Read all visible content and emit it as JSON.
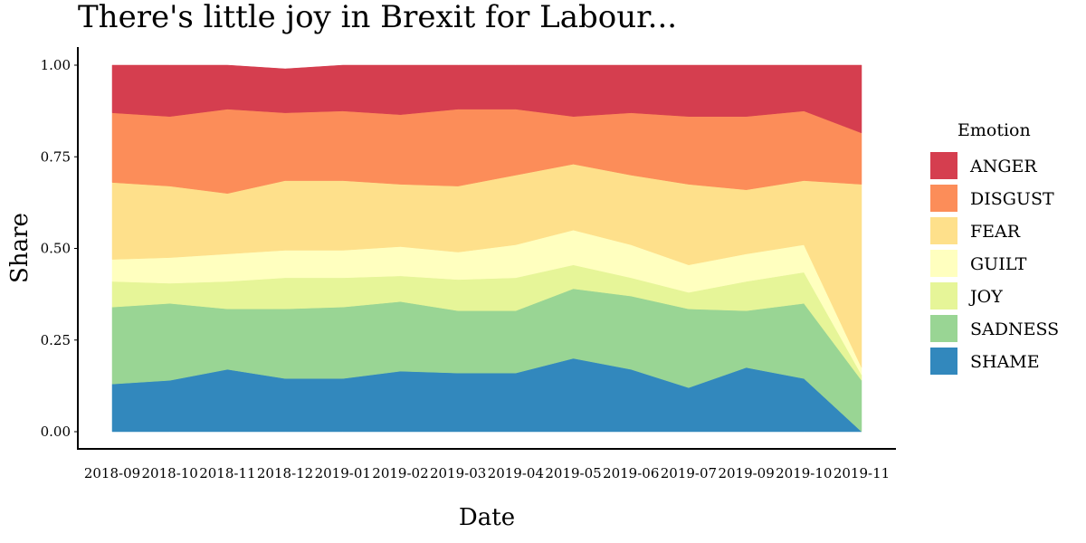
{
  "chart_data": {
    "type": "area",
    "stacked": true,
    "title": "There's little joy in Brexit for Labour...",
    "xlabel": "Date",
    "ylabel": "Share",
    "ylim": [
      0,
      1
    ],
    "y_ticks": [
      "0.00",
      "0.25",
      "0.50",
      "0.75",
      "1.00"
    ],
    "y_tick_values": [
      0,
      0.25,
      0.5,
      0.75,
      1.0
    ],
    "grid": false,
    "legend": {
      "title": "Emotion",
      "placement": "right"
    },
    "x": [
      "2018-09",
      "2018-10",
      "2018-11",
      "2018-12",
      "2019-01",
      "2019-02",
      "2019-03",
      "2019-04",
      "2019-05",
      "2019-06",
      "2019-07",
      "2019-09",
      "2019-10",
      "2019-11"
    ],
    "series": [
      {
        "name": "ANGER",
        "color": "#d53e4f",
        "values": [
          0.13,
          0.14,
          0.12,
          0.12,
          0.125,
          0.135,
          0.12,
          0.12,
          0.14,
          0.13,
          0.14,
          0.14,
          0.125,
          0.185
        ]
      },
      {
        "name": "DISGUST",
        "color": "#fc8d59",
        "values": [
          0.19,
          0.19,
          0.23,
          0.185,
          0.19,
          0.19,
          0.21,
          0.18,
          0.13,
          0.17,
          0.185,
          0.2,
          0.19,
          0.14
        ]
      },
      {
        "name": "FEAR",
        "color": "#fee08b",
        "values": [
          0.21,
          0.195,
          0.165,
          0.19,
          0.19,
          0.17,
          0.18,
          0.19,
          0.18,
          0.19,
          0.22,
          0.175,
          0.175,
          0.5
        ]
      },
      {
        "name": "GUILT",
        "color": "#ffffbf",
        "values": [
          0.06,
          0.07,
          0.075,
          0.075,
          0.075,
          0.08,
          0.075,
          0.09,
          0.095,
          0.09,
          0.075,
          0.075,
          0.075,
          0.02
        ]
      },
      {
        "name": "JOY",
        "color": "#e6f598",
        "values": [
          0.07,
          0.055,
          0.075,
          0.085,
          0.08,
          0.07,
          0.085,
          0.09,
          0.065,
          0.05,
          0.045,
          0.08,
          0.085,
          0.015
        ]
      },
      {
        "name": "SADNESS",
        "color": "#99d594",
        "values": [
          0.21,
          0.21,
          0.165,
          0.19,
          0.195,
          0.19,
          0.17,
          0.17,
          0.19,
          0.2,
          0.215,
          0.155,
          0.205,
          0.14
        ]
      },
      {
        "name": "SHAME",
        "color": "#3288bd",
        "values": [
          0.13,
          0.14,
          0.17,
          0.145,
          0.145,
          0.165,
          0.16,
          0.16,
          0.2,
          0.17,
          0.12,
          0.175,
          0.145,
          0.0
        ]
      }
    ]
  }
}
